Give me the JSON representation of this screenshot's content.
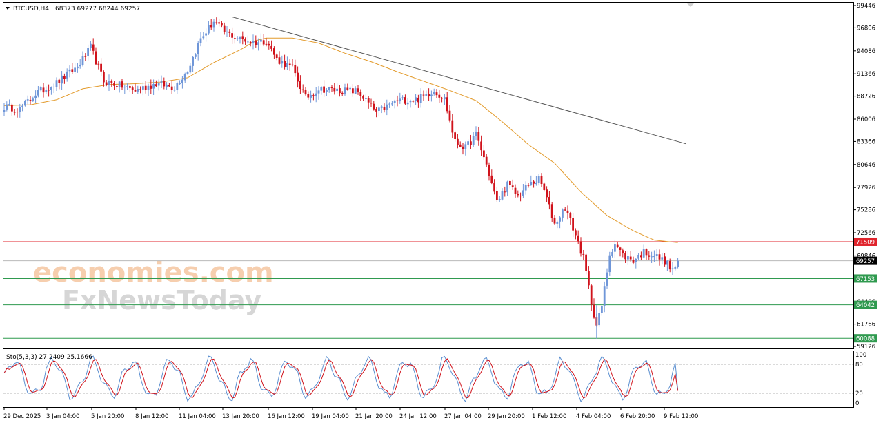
{
  "header": {
    "symbol_timeframe": "BTCUSD,H4",
    "ohlc": "68373 69277 68244 69257"
  },
  "watermark": {
    "line1": "economies.com",
    "line2": "FxNewsToday"
  },
  "colors": {
    "bull": "#6f96d8",
    "bear": "#d0121b",
    "moving_average": "#e39b2c",
    "trendline": "#555555",
    "resistance": "#e0242c",
    "support": "#2f9a4f",
    "current_price_line": "#b9b9b9",
    "stoch_main": "#5b8fd0",
    "stoch_signal": "#d0121b"
  },
  "chart_data": [
    {
      "type": "candlestick",
      "title": "BTCUSD,H4",
      "y_ticks": [
        "99446",
        "96806",
        "94086",
        "91366",
        "88726",
        "86006",
        "83366",
        "80646",
        "77926",
        "75286",
        "72566",
        "69846",
        "67126",
        "64406",
        "61766",
        "59126"
      ],
      "ylim": [
        59126,
        99446
      ],
      "x_ticks": [
        "29 Dec 2025",
        "3 Jan 04:00",
        "5 Jan 20:00",
        "8 Jan 12:00",
        "11 Jan 04:00",
        "13 Jan 20:00",
        "16 Jan 12:00",
        "19 Jan 04:00",
        "21 Jan 20:00",
        "24 Jan 12:00",
        "27 Jan 04:00",
        "29 Jan 20:00",
        "1 Feb 12:00",
        "4 Feb 04:00",
        "6 Feb 20:00",
        "9 Feb 12:00"
      ],
      "last_price": 69257,
      "anchors": [
        [
          0,
          87500
        ],
        [
          6,
          87200
        ],
        [
          12,
          89000
        ],
        [
          20,
          90300
        ],
        [
          28,
          92200
        ],
        [
          33,
          94500
        ],
        [
          38,
          90500
        ],
        [
          44,
          90000
        ],
        [
          50,
          89400
        ],
        [
          58,
          90200
        ],
        [
          65,
          89800
        ],
        [
          70,
          91800
        ],
        [
          75,
          95500
        ],
        [
          80,
          97600
        ],
        [
          84,
          96300
        ],
        [
          90,
          95500
        ],
        [
          96,
          95100
        ],
        [
          100,
          95300
        ],
        [
          104,
          93100
        ],
        [
          110,
          92000
        ],
        [
          115,
          88500
        ],
        [
          120,
          89600
        ],
        [
          128,
          89400
        ],
        [
          135,
          89300
        ],
        [
          142,
          86800
        ],
        [
          150,
          88200
        ],
        [
          158,
          88400
        ],
        [
          164,
          89400
        ],
        [
          168,
          88400
        ],
        [
          172,
          83300
        ],
        [
          176,
          82600
        ],
        [
          180,
          84200
        ],
        [
          184,
          80600
        ],
        [
          188,
          76200
        ],
        [
          192,
          78300
        ],
        [
          196,
          76900
        ],
        [
          200,
          78200
        ],
        [
          204,
          78900
        ],
        [
          206,
          77600
        ],
        [
          210,
          73600
        ],
        [
          214,
          75600
        ],
        [
          218,
          72300
        ],
        [
          221,
          69600
        ],
        [
          224,
          64300
        ],
        [
          226,
          61600
        ],
        [
          228,
          63900
        ],
        [
          231,
          70100
        ],
        [
          233,
          71300
        ],
        [
          236,
          69900
        ],
        [
          240,
          69300
        ],
        [
          244,
          70300
        ],
        [
          248,
          69900
        ],
        [
          252,
          69200
        ],
        [
          255,
          68100
        ],
        [
          257,
          69257
        ]
      ],
      "moving_average_anchors": [
        [
          0,
          87600
        ],
        [
          10,
          87700
        ],
        [
          20,
          88300
        ],
        [
          30,
          89600
        ],
        [
          40,
          90100
        ],
        [
          50,
          90200
        ],
        [
          60,
          90400
        ],
        [
          70,
          90900
        ],
        [
          80,
          92700
        ],
        [
          90,
          94200
        ],
        [
          96,
          95300
        ],
        [
          100,
          95600
        ],
        [
          110,
          95600
        ],
        [
          120,
          95000
        ],
        [
          130,
          93800
        ],
        [
          140,
          92800
        ],
        [
          150,
          91600
        ],
        [
          160,
          90500
        ],
        [
          170,
          89400
        ],
        [
          180,
          88200
        ],
        [
          190,
          85700
        ],
        [
          200,
          83000
        ],
        [
          210,
          80800
        ],
        [
          220,
          77400
        ],
        [
          230,
          74600
        ],
        [
          240,
          72800
        ],
        [
          248,
          71700
        ],
        [
          257,
          71400
        ]
      ],
      "trendline": {
        "start": [
          87,
          98100
        ],
        "end": [
          260,
          83100
        ]
      },
      "horizontal_levels": [
        {
          "label": "71509",
          "value": 71509,
          "kind": "resistance"
        },
        {
          "label": "67153",
          "value": 67153,
          "kind": "support"
        },
        {
          "label": "64042",
          "value": 64042,
          "kind": "support"
        },
        {
          "label": "60088",
          "value": 60088,
          "kind": "support"
        }
      ],
      "current_price_label": "69257"
    },
    {
      "type": "line",
      "title": "Sto(5,3,3) 27.2409 25.1666",
      "ylim": [
        0,
        100
      ],
      "y_ticks": [
        "100",
        "80",
        "20",
        "0"
      ],
      "levels": [
        80,
        20
      ],
      "series": [
        {
          "values_main": 27.2409
        },
        {
          "values_signal": 25.1666
        }
      ]
    }
  ]
}
